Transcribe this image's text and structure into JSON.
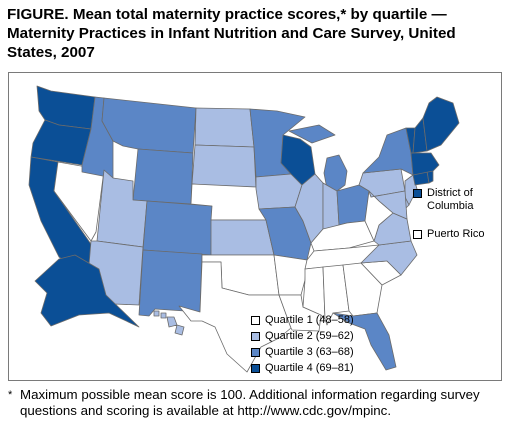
{
  "title": "FIGURE. Mean total maternity practice scores,* by quartile — Maternity Practices in Infant Nutrition and Care Survey, United States, 2007",
  "colors": {
    "q1": "#ffffff",
    "q2": "#a9bde3",
    "q3": "#5b86c6",
    "q4": "#0b4f96",
    "border": "#6b6b6b"
  },
  "state_quartiles": {
    "WA": 4,
    "OR": 4,
    "CA": 4,
    "AK": 4,
    "NV": 1,
    "ID": 3,
    "MT": 3,
    "WY": 3,
    "UT": 2,
    "AZ": 2,
    "CO": 3,
    "NM": 3,
    "ND": 2,
    "SD": 2,
    "NE": 1,
    "KS": 2,
    "OK": 1,
    "TX": 1,
    "MN": 3,
    "IA": 2,
    "MO": 3,
    "AR": 1,
    "LA": 1,
    "WI": 4,
    "IL": 2,
    "MI": 3,
    "IN": 2,
    "OH": 3,
    "KY": 1,
    "TN": 1,
    "MS": 1,
    "AL": 1,
    "GA": 1,
    "FL": 3,
    "SC": 1,
    "NC": 2,
    "VA": 2,
    "WV": 1,
    "PA": 2,
    "NY": 3,
    "NJ": 2,
    "DE": 2,
    "MD": 2,
    "CT": 4,
    "RI": 4,
    "MA": 4,
    "VT": 4,
    "NH": 4,
    "ME": 4,
    "HI": 2,
    "DC": 4,
    "PR": 1
  },
  "inset_labels": {
    "dc": "District of Columbia",
    "pr": "Puerto Rico"
  },
  "legend": [
    {
      "label": "Quartile 1 (48–58)",
      "quartile": 1
    },
    {
      "label": "Quartile 2 (59–62)",
      "quartile": 2
    },
    {
      "label": "Quartile 3 (63–68)",
      "quartile": 3
    },
    {
      "label": "Quartile 4 (69–81)",
      "quartile": 4
    }
  ],
  "footnote": {
    "mark": "*",
    "text": "Maximum possible mean score is 100. Additional information regarding survey questions and scoring is available at http://www.cdc.gov/mpinc."
  }
}
